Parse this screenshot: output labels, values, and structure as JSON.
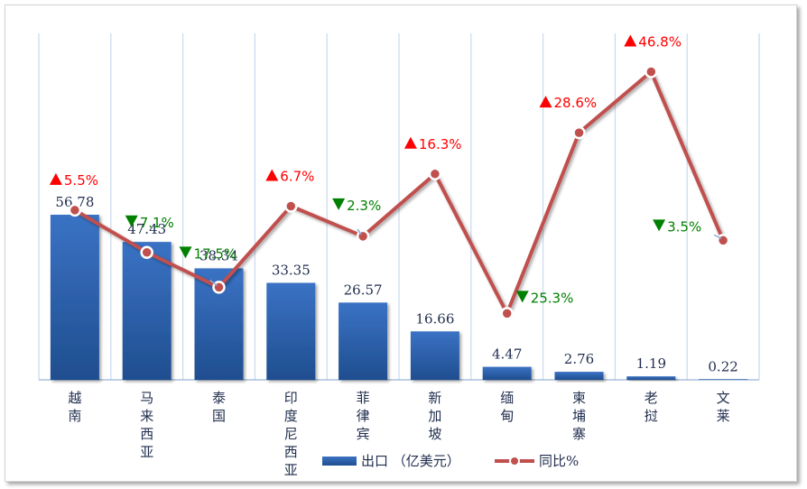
{
  "chart_data": {
    "type": "bar+line",
    "categories": [
      "越南",
      "马来西亚",
      "泰国",
      "印度尼西亚",
      "菲律宾",
      "新加坡",
      "缅甸",
      "柬埔寨",
      "老挝",
      "文莱"
    ],
    "series": [
      {
        "name": "出口 （亿美元）",
        "type": "bar",
        "values": [
          56.78,
          47.43,
          38.34,
          33.35,
          26.57,
          16.66,
          4.47,
          2.76,
          1.19,
          0.22
        ]
      },
      {
        "name": "同比%",
        "type": "line",
        "values": [
          5.5,
          -7.1,
          -17.5,
          6.7,
          -2.3,
          16.3,
          -25.3,
          28.6,
          46.8,
          -3.5
        ]
      }
    ],
    "data_labels": {
      "bar": [
        "56.78",
        "47.43",
        "38.34",
        "33.35",
        "26.57",
        "16.66",
        "4.47",
        "2.76",
        "1.19",
        "0.22"
      ],
      "line": [
        "5.5%",
        "7.1%",
        "17.5%",
        "6.7%",
        "2.3%",
        "16.3%",
        "25.3%",
        "28.6%",
        "46.8%",
        "3.5%"
      ]
    },
    "bar_ylim": [
      0,
      80
    ],
    "line_ylim": [
      -40,
      55
    ],
    "grid": "vertical",
    "legend": "bottom",
    "colors": {
      "bar": "#3a72c4",
      "bar_dark": "#1f4e8f",
      "line": "#c0504d",
      "up": "#ff0000",
      "down": "#008000",
      "grid": "#c9d9ee"
    }
  }
}
